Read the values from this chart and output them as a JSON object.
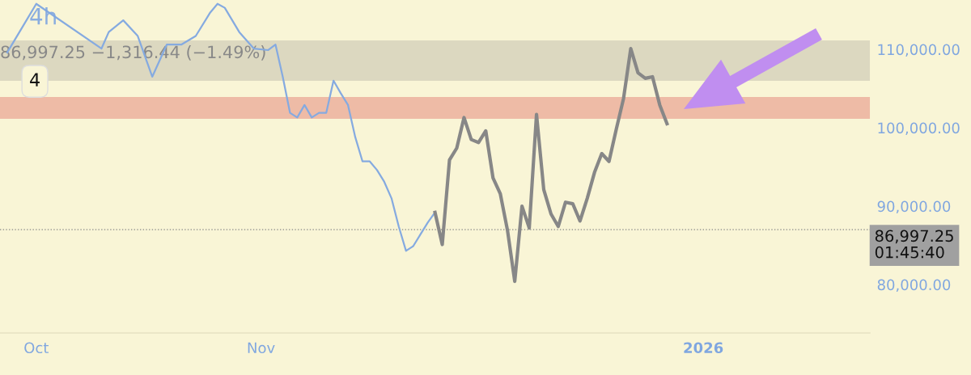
{
  "chart_data": {
    "type": "line",
    "x": [
      "2025-09-27",
      "2025-09-29",
      "2025-10-01",
      "2025-10-10",
      "2025-10-11",
      "2025-10-13",
      "2025-10-15",
      "2025-10-17",
      "2025-10-19",
      "2025-10-21",
      "2025-10-23",
      "2025-10-25",
      "2025-10-26",
      "2025-10-27",
      "2025-10-29",
      "2025-10-31",
      "2025-11-02",
      "2025-11-03",
      "2025-11-04",
      "2025-11-05",
      "2025-11-06",
      "2025-11-07",
      "2025-11-08",
      "2025-11-09",
      "2025-11-10",
      "2025-11-11",
      "2025-11-12",
      "2025-11-13",
      "2025-11-14",
      "2025-11-15",
      "2025-11-16",
      "2025-11-17",
      "2025-11-18",
      "2025-11-19",
      "2025-11-20",
      "2025-11-21",
      "2025-11-22",
      "2025-11-23",
      "2025-11-24",
      "2025-11-25"
    ],
    "series": [
      {
        "color": "#85aae0",
        "values": [
          109600,
          112700,
          115800,
          110100,
          112200,
          113700,
          111700,
          106500,
          110600,
          110600,
          111700,
          114700,
          115800,
          115300,
          112200,
          110100,
          109900,
          110600,
          106500,
          101900,
          101300,
          102900,
          101300,
          101900,
          101900,
          106000,
          104400,
          102900,
          98800,
          95700,
          95700,
          94600,
          93100,
          91000,
          87400,
          84300,
          84900,
          86400,
          87900,
          89200
        ]
      },
      {
        "color": "#878787",
        "x": [
          "2025-11-25",
          "2025-11-26",
          "2025-11-27",
          "2025-11-28",
          "2025-11-29",
          "2025-11-30",
          "2025-12-01",
          "2025-12-02",
          "2025-12-03",
          "2025-12-04",
          "2025-12-05",
          "2025-12-06",
          "2025-12-07",
          "2025-12-08",
          "2025-12-09",
          "2025-12-10",
          "2025-12-11",
          "2025-12-12",
          "2025-12-13",
          "2025-12-14",
          "2025-12-15",
          "2025-12-16",
          "2025-12-17",
          "2025-12-18",
          "2025-12-19",
          "2025-12-20",
          "2025-12-21",
          "2025-12-22",
          "2025-12-23",
          "2025-12-24",
          "2025-12-25",
          "2025-12-26",
          "2025-12-27"
        ],
        "values": [
          89200,
          85100,
          95900,
          97400,
          101300,
          98500,
          98100,
          99600,
          93600,
          91600,
          86900,
          80400,
          90000,
          87200,
          101700,
          92100,
          89000,
          87400,
          90500,
          90300,
          88100,
          91000,
          94300,
          96700,
          95700,
          99800,
          103700,
          110100,
          107000,
          106300,
          106500,
          102900,
          100500
        ]
      }
    ],
    "xlim": [
      "2025-09-26",
      "2026-01-24"
    ],
    "xticks": [
      {
        "value": "2025-10-01",
        "label": "Oct"
      },
      {
        "value": "2025-11-01",
        "label": "Nov"
      },
      {
        "value": "2026-01-01",
        "label": "2026"
      }
    ],
    "ylim": [
      73815,
      116290
    ],
    "yticks": [
      {
        "value": 80000,
        "label": "80,000.00"
      },
      {
        "value": 90000,
        "label": "90,000.00"
      },
      {
        "value": 100000,
        "label": "100,000.00"
      },
      {
        "value": 110000,
        "label": "110,000.00"
      }
    ],
    "bands": [
      {
        "axis": "y",
        "from": 105980,
        "to": 111130,
        "color": "#dcd8c0"
      },
      {
        "axis": "y",
        "from": 101140,
        "to": 103920,
        "color": "#eebba6"
      }
    ],
    "ref_lines": [
      {
        "axis": "y",
        "value": 86997.25,
        "label": "86,997.25",
        "color": "#888888",
        "line_style": "dotted"
      }
    ],
    "annotations": [
      "4h",
      "86,997.25 −1,316.44 (−1.49%)",
      "4",
      "01:45:40"
    ],
    "grid": false,
    "line_style": "solid",
    "marker": "none"
  }
}
